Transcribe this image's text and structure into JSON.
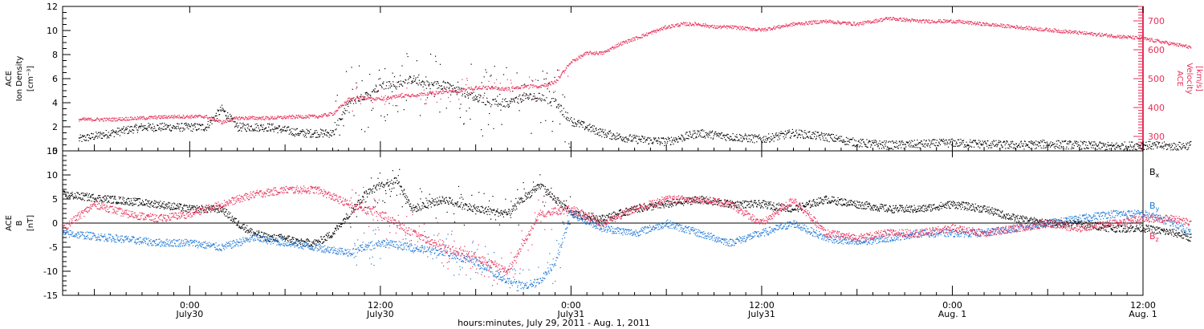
{
  "figure": {
    "xlabel": "hours:minutes, July 29, 2011 - Aug. 1, 2011",
    "xlim_hours": [
      -8,
      60
    ],
    "x_ticks": [
      {
        "hour": 0,
        "label1": "0:00",
        "label2": "July30"
      },
      {
        "hour": 12,
        "label1": "12:00",
        "label2": "July30"
      },
      {
        "hour": 24,
        "label1": "0:00",
        "label2": "July31"
      },
      {
        "hour": 36,
        "label1": "12:00",
        "label2": "July31"
      },
      {
        "hour": 48,
        "label1": "0:00",
        "label2": "Aug. 1"
      },
      {
        "hour": 60,
        "label1": "12:00",
        "label2": "Aug. 1"
      }
    ],
    "colors": {
      "density": "#000000",
      "velocity": "#e8305a",
      "bx": "#000000",
      "by": "#1e78d8",
      "bz": "#e8305a"
    }
  },
  "chart_data": [
    {
      "type": "scatter",
      "panel": "ion density / velocity",
      "ylabel_left": [
        "ACE",
        "Ion Density",
        "[cm⁻³]"
      ],
      "ylabel_right": [
        "ACE",
        "Velocity",
        "[km/s]"
      ],
      "ylim_left": [
        0,
        12
      ],
      "ylim_right": [
        250,
        750
      ],
      "yticks_left": [
        0,
        2,
        4,
        6,
        8,
        10,
        12
      ],
      "yticks_right": [
        300,
        400,
        500,
        600,
        700
      ],
      "series": [
        {
          "axis": "left",
          "color": "#000000",
          "x": [
            -7,
            -5,
            -3,
            -1,
            1,
            2,
            3,
            5,
            7,
            9,
            10,
            11,
            12,
            13,
            14,
            15,
            16,
            17,
            18,
            19,
            20,
            21,
            22,
            23,
            24,
            25,
            26,
            27,
            28,
            30,
            32,
            34,
            36,
            38,
            40,
            42,
            44,
            46,
            48,
            50,
            52,
            54,
            56,
            58,
            60,
            62,
            63
          ],
          "y": [
            1.0,
            1.5,
            2.0,
            2.0,
            2.0,
            3.5,
            2.0,
            2.0,
            1.5,
            1.5,
            4.0,
            4.5,
            5.5,
            5.5,
            6.0,
            5.5,
            5.5,
            5.0,
            4.5,
            4.0,
            4.0,
            4.5,
            4.5,
            4.0,
            2.5,
            2.0,
            1.5,
            1.2,
            1.0,
            0.8,
            1.5,
            1.2,
            1.0,
            1.5,
            1.2,
            0.7,
            0.5,
            0.6,
            0.7,
            0.6,
            0.5,
            0.6,
            0.5,
            0.4,
            0.5,
            0.4,
            0.5
          ]
        },
        {
          "axis": "right",
          "color": "#e8305a",
          "x": [
            -7,
            -5,
            -3,
            -1,
            1,
            2,
            3,
            5,
            7,
            8,
            9,
            10,
            11,
            12,
            13,
            14,
            15,
            16,
            17,
            18,
            19,
            20,
            21,
            22,
            23,
            24,
            25,
            26,
            27,
            28,
            29,
            30,
            31,
            32,
            33,
            34,
            36,
            38,
            40,
            42,
            43,
            44,
            46,
            48,
            50,
            52,
            54,
            56,
            58,
            60,
            62,
            63
          ],
          "y": [
            360,
            360,
            365,
            370,
            370,
            350,
            365,
            365,
            370,
            370,
            380,
            430,
            435,
            430,
            440,
            445,
            450,
            455,
            460,
            470,
            470,
            465,
            475,
            475,
            490,
            560,
            590,
            590,
            620,
            640,
            660,
            680,
            690,
            690,
            680,
            680,
            670,
            690,
            700,
            690,
            700,
            710,
            700,
            700,
            690,
            680,
            670,
            660,
            650,
            640,
            620,
            610
          ]
        }
      ]
    },
    {
      "type": "scatter",
      "panel": "magnetic field",
      "ylabel": [
        "ACE",
        "B",
        "[nT]"
      ],
      "ylim": [
        -15,
        15
      ],
      "yticks": [
        -15,
        -10,
        -5,
        0,
        5,
        10,
        15
      ],
      "legend_placement": "right",
      "series": [
        {
          "name": "Bx",
          "legend_base": "B",
          "legend_sub": "x",
          "color": "#000000",
          "x": [
            -8,
            -5,
            -2,
            0,
            2,
            3,
            4,
            5,
            6,
            7,
            8,
            9,
            10,
            11,
            12,
            13,
            14,
            16,
            18,
            20,
            22,
            24,
            26,
            28,
            30,
            32,
            34,
            36,
            38,
            40,
            42,
            44,
            46,
            48,
            50,
            52,
            54,
            56,
            58,
            60,
            62,
            63
          ],
          "y": [
            6,
            5,
            4,
            3,
            3,
            0,
            -2,
            -3,
            -3,
            -4,
            -4,
            -2,
            2,
            6,
            8,
            9,
            3,
            5,
            3,
            2,
            8,
            2,
            1,
            3,
            4,
            5,
            4,
            4,
            3,
            5,
            4,
            3,
            3,
            4,
            3,
            1,
            0,
            0,
            -1,
            -1,
            -2,
            -3
          ]
        },
        {
          "name": "By",
          "legend_base": "B",
          "legend_sub": "y",
          "color": "#1e78d8",
          "x": [
            -8,
            -5,
            -2,
            0,
            2,
            4,
            6,
            8,
            10,
            12,
            14,
            16,
            18,
            19,
            20,
            21,
            22,
            23,
            24,
            26,
            28,
            30,
            32,
            34,
            36,
            38,
            40,
            42,
            44,
            46,
            48,
            50,
            52,
            54,
            56,
            58,
            60,
            62,
            63
          ],
          "y": [
            -2,
            -3,
            -4,
            -4,
            -5,
            -3,
            -4,
            -5,
            -6,
            -4,
            -5,
            -6,
            -8,
            -10,
            -12,
            -13,
            -12,
            -8,
            2,
            -1,
            -2,
            0,
            -2,
            -4,
            -2,
            0,
            -3,
            -4,
            -3,
            -2,
            -2,
            -2,
            -1,
            0,
            1,
            2,
            2,
            0,
            -2
          ]
        },
        {
          "name": "Bz",
          "legend_base": "B",
          "legend_sub": "z",
          "color": "#e8305a",
          "x": [
            -8,
            -6,
            -4,
            -2,
            0,
            2,
            4,
            6,
            8,
            10,
            12,
            14,
            16,
            18,
            20,
            22,
            24,
            26,
            28,
            30,
            32,
            34,
            36,
            38,
            40,
            42,
            44,
            46,
            48,
            50,
            52,
            54,
            56,
            58,
            60,
            62,
            63
          ],
          "y": [
            -1,
            4,
            2,
            1,
            2,
            4,
            6,
            7,
            7,
            4,
            2,
            -2,
            -5,
            -7,
            -10,
            2,
            3,
            0,
            3,
            5,
            5,
            4,
            0,
            5,
            -2,
            -3,
            -2,
            -2,
            -1,
            -2,
            -1,
            0,
            -1,
            0,
            1,
            1,
            0
          ]
        }
      ]
    }
  ]
}
